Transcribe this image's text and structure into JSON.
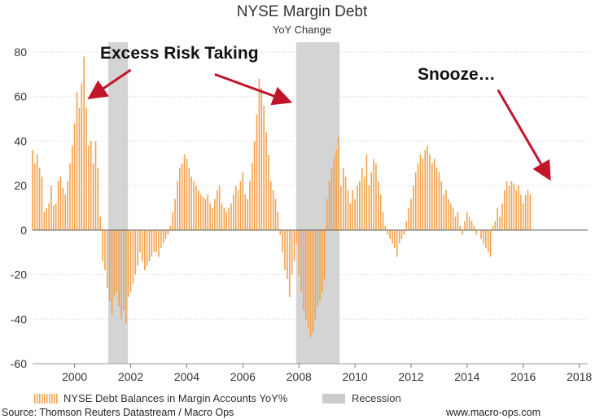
{
  "chart_data": {
    "type": "bar",
    "title": "NYSE Margin Debt",
    "subtitle": "YoY Change",
    "xlabel": "",
    "ylabel": "",
    "xlim": [
      1998.5,
      2018.3
    ],
    "ylim": [
      -60,
      85
    ],
    "yticks": [
      80,
      60,
      40,
      20,
      0,
      -20,
      -40,
      -60
    ],
    "xticks": [
      2000,
      2002,
      2004,
      2006,
      2008,
      2010,
      2012,
      2014,
      2016,
      2018
    ],
    "grid": "horizontal",
    "bar_color": "#f2a14a",
    "recession_color": "#cccccc",
    "arrow_color": "#c0152a",
    "series": [
      {
        "name": "NYSE Debt Balances in Margin Accounts YoY%",
        "x_start": 1998.5,
        "step": 0.08333,
        "values": [
          36,
          30,
          34,
          28,
          24,
          8,
          10,
          12,
          20,
          11,
          12,
          22,
          24,
          19,
          16,
          22,
          30,
          38,
          48,
          62,
          55,
          66,
          78,
          55,
          38,
          40,
          30,
          40,
          28,
          6,
          -14,
          -18,
          -26,
          -32,
          -38,
          -30,
          -28,
          -34,
          -40,
          -36,
          -42,
          -30,
          -28,
          -24,
          -20,
          -16,
          -10,
          -14,
          -18,
          -16,
          -14,
          -12,
          -10,
          -10,
          -12,
          -8,
          -6,
          -4,
          -2,
          2,
          8,
          14,
          22,
          28,
          30,
          34,
          32,
          28,
          24,
          22,
          20,
          18,
          16,
          15,
          14,
          16,
          12,
          10,
          14,
          18,
          20,
          12,
          10,
          8,
          10,
          12,
          16,
          20,
          18,
          22,
          26,
          16,
          14,
          22,
          30,
          40,
          52,
          68,
          64,
          56,
          44,
          34,
          22,
          18,
          14,
          8,
          -2,
          -10,
          -18,
          -22,
          -30,
          -20,
          -14,
          -6,
          -20,
          -28,
          -36,
          -40,
          -44,
          -48,
          -46,
          -40,
          -34,
          -32,
          -28,
          -22,
          14,
          22,
          28,
          32,
          36,
          42,
          20,
          28,
          24,
          18,
          12,
          18,
          14,
          20,
          22,
          28,
          24,
          34,
          20,
          26,
          32,
          30,
          22,
          16,
          8,
          2,
          -2,
          -4,
          -6,
          -8,
          -12,
          -6,
          -4,
          -2,
          4,
          10,
          14,
          20,
          26,
          30,
          34,
          32,
          36,
          38,
          34,
          30,
          32,
          28,
          26,
          22,
          16,
          18,
          14,
          12,
          10,
          6,
          8,
          2,
          -2,
          4,
          8,
          6,
          4,
          2,
          -2,
          0,
          -4,
          -6,
          -8,
          -10,
          -12,
          2,
          4,
          10,
          6,
          12,
          18,
          22,
          20,
          22,
          21,
          18,
          20,
          16,
          12,
          16,
          18,
          16
        ]
      }
    ],
    "recessions": [
      {
        "start": 2001.2,
        "end": 2001.9
      },
      {
        "start": 2007.9,
        "end": 2009.45
      }
    ],
    "annotations": [
      {
        "text": "Excess Risk Taking",
        "target": [
          2000.6,
          60
        ],
        "from": [
          2002.0,
          72
        ]
      },
      {
        "text": "Excess Risk Taking",
        "target": [
          2007.6,
          58
        ],
        "from": [
          2005.0,
          70
        ]
      },
      {
        "text": "Snooze…",
        "target": [
          2016.9,
          24
        ],
        "from": [
          2015.1,
          63
        ]
      }
    ]
  },
  "labels": {
    "title": "NYSE Margin Debt",
    "subtitle": "YoY Change",
    "annotation_excess": "Excess Risk Taking",
    "annotation_snooze": "Snooze…",
    "legend_series": "NYSE Debt Balances in Margin Accounts YoY%",
    "legend_recession": "Recession",
    "source": "Source: Thomson Reuters Datastream / Macro Ops",
    "website": "www.macro-ops.com"
  }
}
